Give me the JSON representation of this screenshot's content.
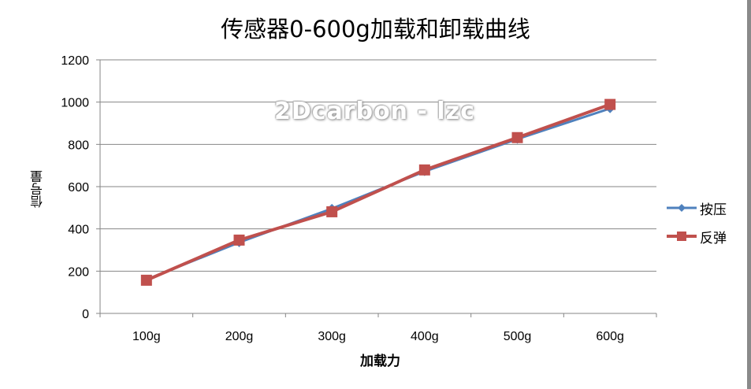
{
  "chart_data": {
    "type": "line",
    "title": "传感器0-600g加载和卸载曲线",
    "xlabel": "加载力",
    "ylabel": "信号量",
    "categories": [
      "100g",
      "200g",
      "300g",
      "400g",
      "500g",
      "600g"
    ],
    "ylim": [
      0,
      1200
    ],
    "yticks": [
      0,
      200,
      400,
      600,
      800,
      1000,
      1200
    ],
    "grid": true,
    "legend_position": "right",
    "series": [
      {
        "name": "按压",
        "color": "#4F81BD",
        "marker": "diamond",
        "values": [
          160,
          336,
          496,
          672,
          825,
          970
        ]
      },
      {
        "name": "反弹",
        "color": "#C0504D",
        "marker": "square",
        "values": [
          157,
          347,
          481,
          679,
          832,
          989
        ]
      }
    ],
    "annotations": [
      "2Dcarbon - lzc"
    ]
  },
  "watermark": "2Dcarbon - lzc"
}
